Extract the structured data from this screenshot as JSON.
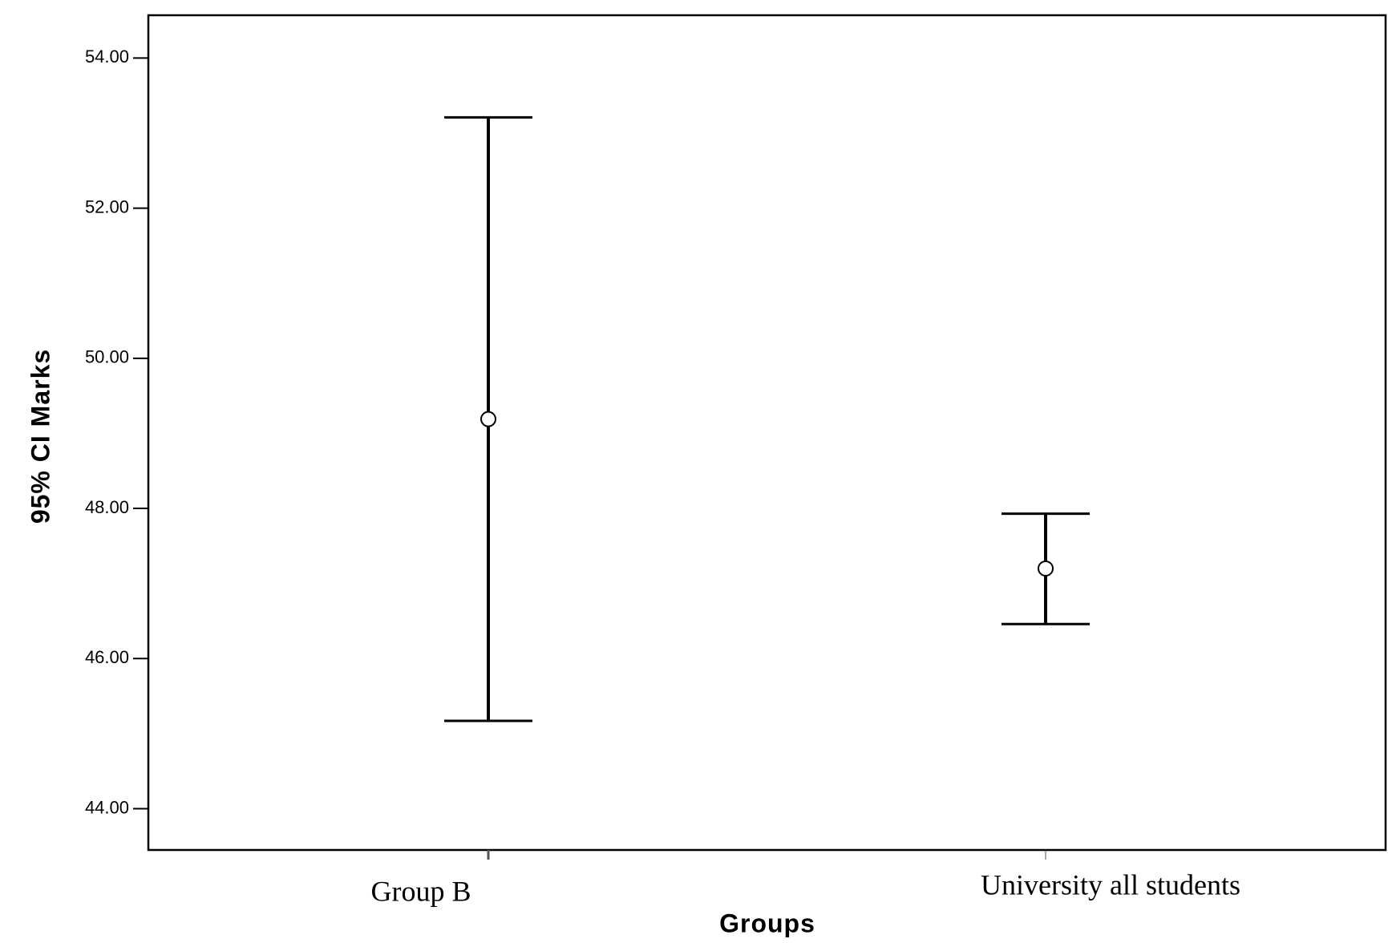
{
  "chart_data": {
    "type": "errorbar",
    "x_label": "Groups",
    "y_label": "95% CI Marks",
    "categories": [
      "Group B",
      "University all students"
    ],
    "series": [
      {
        "values": [
          49.19,
          47.2
        ],
        "low": [
          45.17,
          46.46
        ],
        "high": [
          53.21,
          47.93
        ],
        "color": "#000000"
      }
    ],
    "ylim": [
      43.45,
      54.57
    ],
    "yticks": [
      {
        "value": 44,
        "label": "44.00"
      },
      {
        "value": 46,
        "label": "46.00"
      },
      {
        "value": 48,
        "label": "48.00"
      },
      {
        "value": 50,
        "label": "50.00"
      },
      {
        "value": 52,
        "label": "52.00"
      },
      {
        "value": 54,
        "label": "54.00"
      }
    ],
    "grid": false
  }
}
